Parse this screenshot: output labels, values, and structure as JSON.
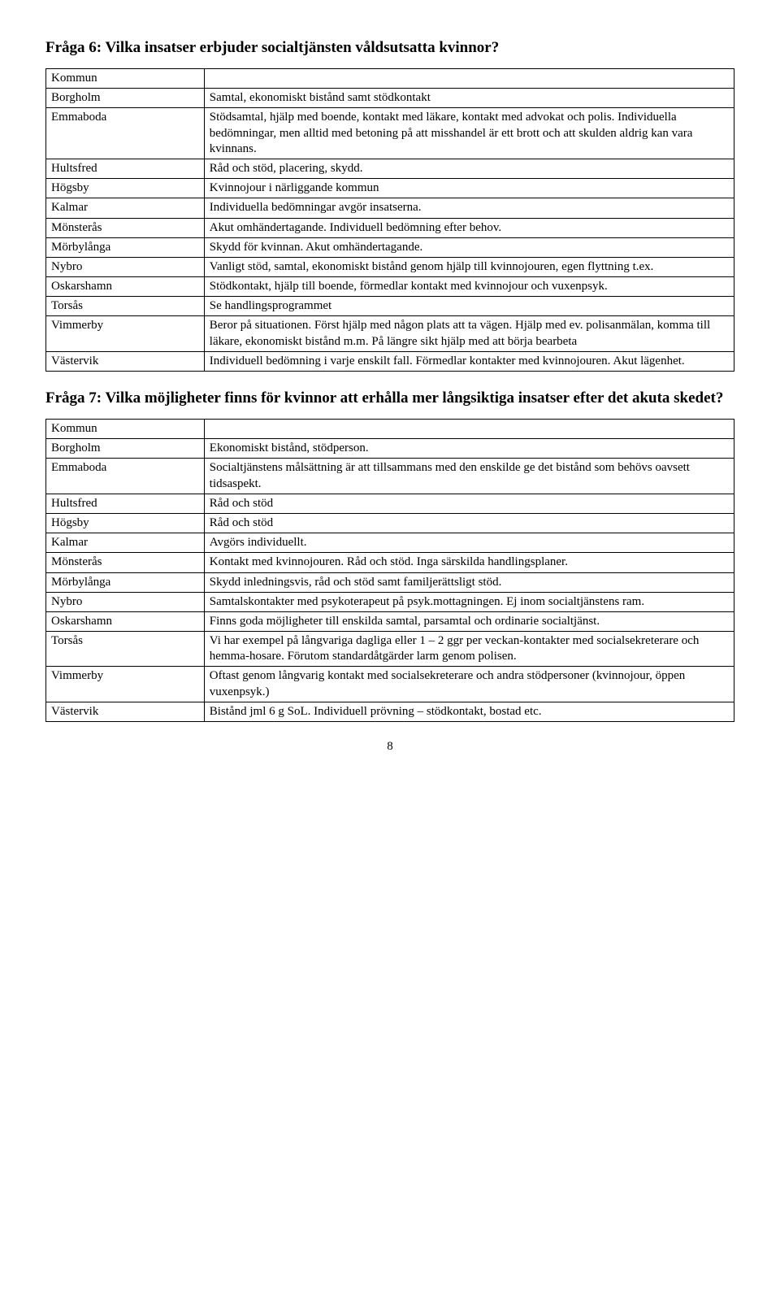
{
  "q6": {
    "title": "Fråga 6: Vilka insatser erbjuder socialtjänsten våldsutsatta kvinnor?",
    "header": "Kommun",
    "rows": [
      {
        "k": "Borgholm",
        "v": "Samtal, ekonomiskt bistånd samt stödkontakt"
      },
      {
        "k": "Emmaboda",
        "v": "Stödsamtal, hjälp med boende, kontakt med läkare, kontakt med advokat och polis. Individuella bedömningar, men alltid med betoning på att misshandel är ett brott och att skulden aldrig kan vara kvinnans."
      },
      {
        "k": "Hultsfred",
        "v": "Råd och stöd, placering, skydd."
      },
      {
        "k": "Högsby",
        "v": "Kvinnojour i närliggande kommun"
      },
      {
        "k": "Kalmar",
        "v": "Individuella bedömningar avgör insatserna."
      },
      {
        "k": "Mönsterås",
        "v": "Akut omhändertagande. Individuell bedömning efter behov."
      },
      {
        "k": "Mörbylånga",
        "v": "Skydd för kvinnan. Akut omhändertagande."
      },
      {
        "k": "Nybro",
        "v": "Vanligt stöd, samtal, ekonomiskt bistånd genom hjälp till kvinnojouren, egen flyttning t.ex."
      },
      {
        "k": "Oskarshamn",
        "v": "Stödkontakt, hjälp till boende, förmedlar kontakt med kvinnojour och vuxenpsyk."
      },
      {
        "k": "Torsås",
        "v": "Se handlingsprogrammet"
      },
      {
        "k": "Vimmerby",
        "v": "Beror på situationen. Först hjälp med någon plats att ta vägen. Hjälp med ev. polisanmälan, komma till läkare, ekonomiskt bistånd m.m. På längre sikt hjälp med att börja bearbeta"
      },
      {
        "k": "Västervik",
        "v": "Individuell bedömning i varje enskilt fall. Förmedlar kontakter med kvinnojouren. Akut lägenhet."
      }
    ]
  },
  "q7": {
    "title": "Fråga 7: Vilka möjligheter finns för kvinnor att erhålla mer långsiktiga insatser efter det akuta skedet?",
    "header": "Kommun",
    "rows": [
      {
        "k": "Borgholm",
        "v": "Ekonomiskt bistånd, stödperson."
      },
      {
        "k": "Emmaboda",
        "v": "Socialtjänstens målsättning är att tillsammans med den enskilde ge det bistånd som behövs oavsett tidsaspekt."
      },
      {
        "k": "Hultsfred",
        "v": "Råd och stöd"
      },
      {
        "k": "Högsby",
        "v": "Råd och stöd"
      },
      {
        "k": "Kalmar",
        "v": "Avgörs individuellt."
      },
      {
        "k": "Mönsterås",
        "v": "Kontakt med kvinnojouren. Råd och stöd. Inga särskilda handlingsplaner."
      },
      {
        "k": "Mörbylånga",
        "v": "Skydd inledningsvis, råd och stöd samt familjerättsligt stöd."
      },
      {
        "k": "Nybro",
        "v": "Samtalskontakter med psykoterapeut på psyk.mottagningen. Ej inom socialtjänstens ram."
      },
      {
        "k": "Oskarshamn",
        "v": "Finns goda möjligheter till enskilda samtal, parsamtal och ordinarie socialtjänst."
      },
      {
        "k": "Torsås",
        "v": "Vi har exempel på långvariga dagliga eller 1 – 2 ggr per veckan-kontakter med socialsekreterare och hemma-hosare. Förutom standardåtgärder larm genom polisen."
      },
      {
        "k": "Vimmerby",
        "v": "Oftast genom långvarig kontakt med socialsekreterare och andra stödpersoner (kvinnojour, öppen vuxenpsyk.)"
      },
      {
        "k": "Västervik",
        "v": "Bistånd jml 6 g SoL. Individuell prövning – stödkontakt, bostad etc."
      }
    ]
  },
  "page_number": "8"
}
